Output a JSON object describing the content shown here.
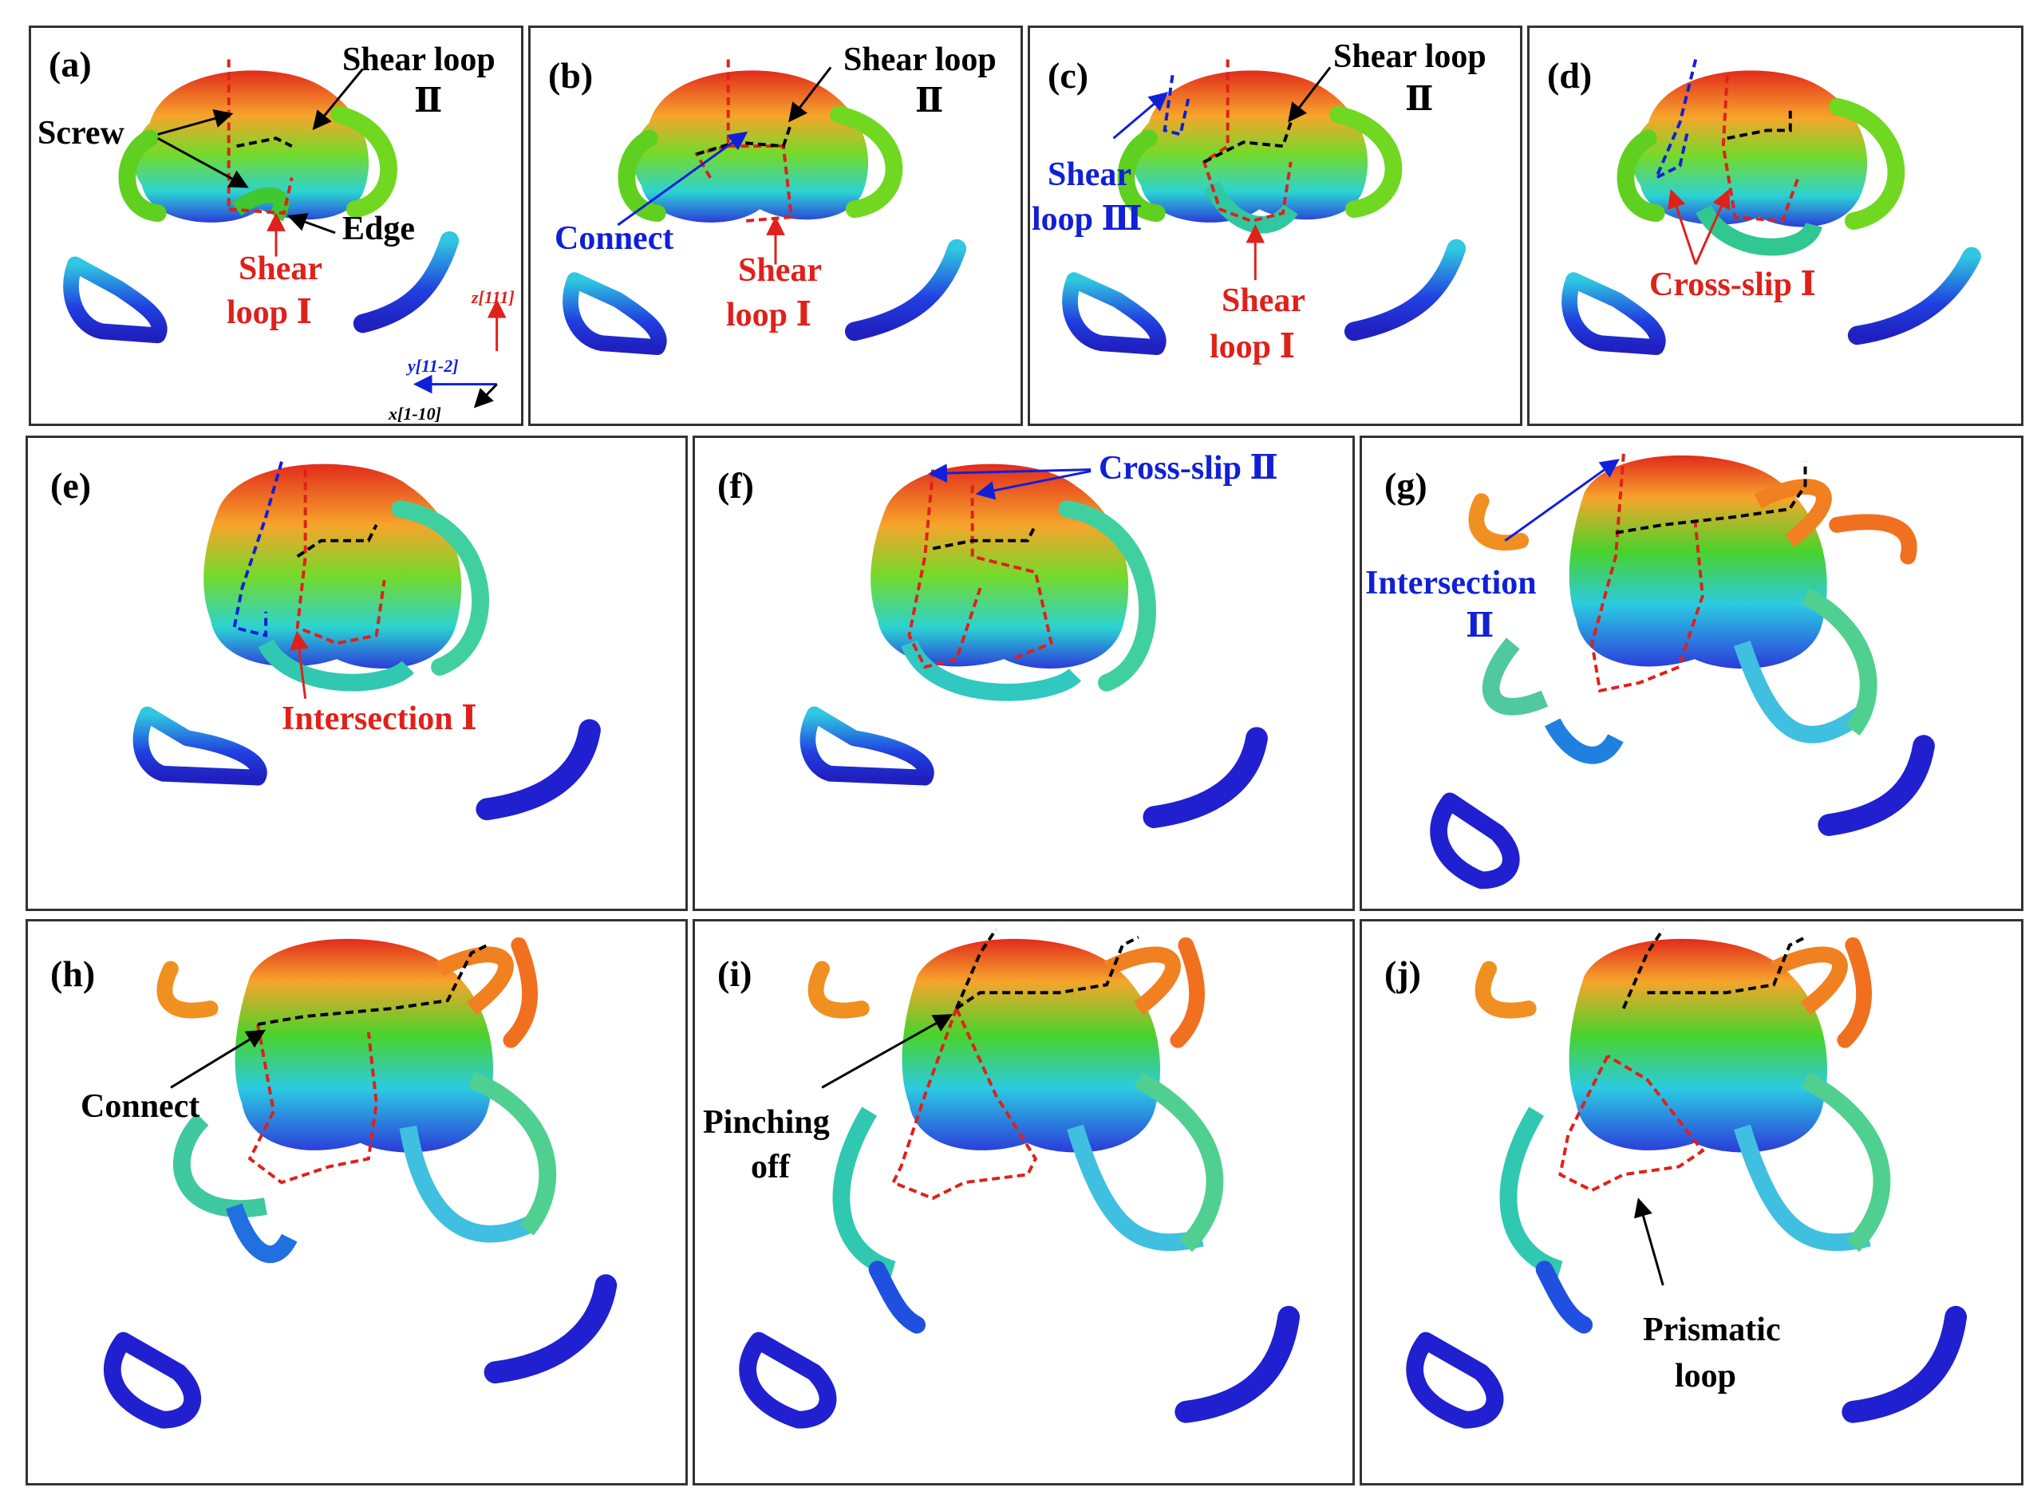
{
  "colors": {
    "red": "#e0201a",
    "blue": "#1020d8",
    "black": "#000000"
  },
  "panels": {
    "a": {
      "label": "(a)",
      "shear_loop": "Shear loop",
      "roman2": "Ⅱ",
      "screw": "Screw",
      "edge": "Edge",
      "shear_loop_i_1": "Shear",
      "shear_loop_i_2": "loop Ⅰ",
      "axis_z": "z[111]",
      "axis_y": "y[11-2]",
      "axis_x": "x[1-10]"
    },
    "b": {
      "label": "(b)",
      "shear_loop": "Shear loop",
      "roman2": "Ⅱ",
      "connect": "Connect",
      "shear_loop_i_1": "Shear",
      "shear_loop_i_2": "loop Ⅰ"
    },
    "c": {
      "label": "(c)",
      "shear_loop": "Shear loop",
      "roman2": "Ⅱ",
      "shear_loop_iii_1": "Shear",
      "shear_loop_iii_2": "loop Ⅲ",
      "shear_loop_i_1": "Shear",
      "shear_loop_i_2": "loop Ⅰ"
    },
    "d": {
      "label": "(d)",
      "cross_slip": "Cross-slip Ⅰ"
    },
    "e": {
      "label": "(e)",
      "intersection": "Intersection Ⅰ"
    },
    "f": {
      "label": "(f)",
      "cross_slip": "Cross-slip Ⅱ"
    },
    "g": {
      "label": "(g)",
      "intersection_1": "Intersection",
      "intersection_2": "Ⅱ"
    },
    "h": {
      "label": "(h)",
      "connect": "Connect"
    },
    "i": {
      "label": "(i)",
      "pinching_1": "Pinching",
      "pinching_2": "off"
    },
    "j": {
      "label": "(j)",
      "prismatic_1": "Prismatic",
      "prismatic_2": "loop"
    }
  }
}
